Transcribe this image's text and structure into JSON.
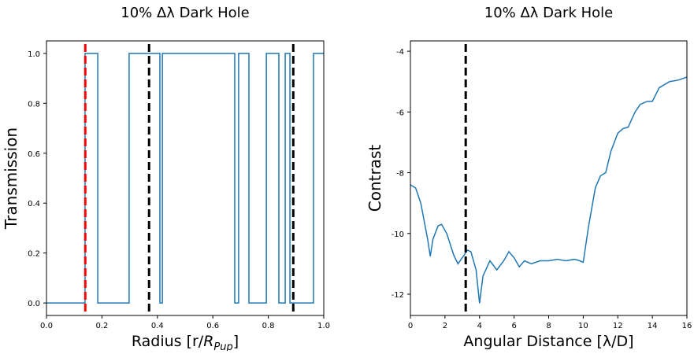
{
  "chart_data": [
    {
      "type": "line",
      "title": "10% Δλ Dark Hole",
      "xlabel_parts": [
        "Radius [r/",
        "R",
        "Pup",
        "]"
      ],
      "ylabel": "Transmission",
      "step": "post",
      "x": [
        0,
        0.139,
        0.185,
        0.298,
        0.409,
        0.418,
        0.679,
        0.693,
        0.73,
        0.793,
        0.838,
        0.861,
        0.878,
        0.963,
        1.0
      ],
      "series": [
        {
          "color": "#1f77b4",
          "values": [
            0,
            1,
            0,
            1,
            0,
            1,
            0,
            1,
            0,
            1,
            0,
            1,
            0,
            1,
            1
          ]
        }
      ],
      "vlines": [
        {
          "x": 0.14,
          "color": "#ff0000"
        },
        {
          "x": 0.37,
          "color": "#000000"
        },
        {
          "x": 0.89,
          "color": "#000000"
        }
      ],
      "xlim": [
        0,
        1
      ],
      "ylim": [
        -0.05,
        1.05
      ],
      "xticks": [
        {
          "value": 0,
          "label": "0.0"
        },
        {
          "value": 0.2,
          "label": "0.2"
        },
        {
          "value": 0.4,
          "label": "0.4"
        },
        {
          "value": 0.6,
          "label": "0.6"
        },
        {
          "value": 0.8,
          "label": "0.8"
        },
        {
          "value": 1,
          "label": "1.0"
        }
      ],
      "yticks": [
        {
          "value": 0,
          "label": "0.0"
        },
        {
          "value": 0.2,
          "label": "0.2"
        },
        {
          "value": 0.4,
          "label": "0.4"
        },
        {
          "value": 0.6,
          "label": "0.6"
        },
        {
          "value": 0.8,
          "label": "0.8"
        },
        {
          "value": 1,
          "label": "1.0"
        }
      ]
    },
    {
      "type": "line",
      "title": "10% Δλ Dark Hole",
      "xlabel_parts": [
        "Angular Distance [λ/D]"
      ],
      "ylabel": "Contrast",
      "x": [
        0,
        0.3,
        0.6,
        1.0,
        1.15,
        1.3,
        1.6,
        1.8,
        2.1,
        2.5,
        2.75,
        3.0,
        3.3,
        3.5,
        3.8,
        4.0,
        4.2,
        4.6,
        5.0,
        5.4,
        5.7,
        6.0,
        6.3,
        6.6,
        7.0,
        7.5,
        8.0,
        8.5,
        9.0,
        9.5,
        9.8,
        10.0,
        10.3,
        10.7,
        11.0,
        11.3,
        11.6,
        12.0,
        12.3,
        12.6,
        13.0,
        13.3,
        13.7,
        14.0,
        14.4,
        15.0,
        15.5,
        16
      ],
      "series": [
        {
          "color": "#1f77b4",
          "values": [
            -8.4,
            -8.5,
            -9.0,
            -10.2,
            -10.75,
            -10.2,
            -9.75,
            -9.7,
            -10.0,
            -10.7,
            -11.0,
            -10.8,
            -10.55,
            -10.6,
            -11.2,
            -12.3,
            -11.4,
            -10.9,
            -11.2,
            -10.9,
            -10.6,
            -10.8,
            -11.1,
            -10.9,
            -11.0,
            -10.9,
            -10.9,
            -10.85,
            -10.9,
            -10.85,
            -10.9,
            -10.95,
            -9.8,
            -8.5,
            -8.1,
            -8.0,
            -7.3,
            -6.7,
            -6.55,
            -6.5,
            -6.0,
            -5.75,
            -5.65,
            -5.65,
            -5.2,
            -5.0,
            -4.95,
            -4.85
          ]
        }
      ],
      "vlines": [
        {
          "x": 3.2,
          "color": "#000000"
        }
      ],
      "xlim": [
        0,
        16
      ],
      "ylim": [
        -12.7,
        -3.66
      ],
      "xticks": [
        0,
        2,
        4,
        6,
        8,
        10,
        12,
        14,
        16
      ],
      "yticks": [
        -12,
        -10,
        -8,
        -6,
        -4
      ]
    }
  ]
}
